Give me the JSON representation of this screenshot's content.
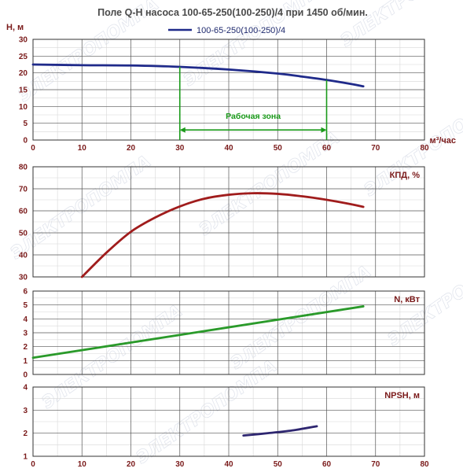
{
  "chart_data": {
    "title": "Поле Q-H насоса 100-65-250(100-250)/4 при 1450 об/мин.",
    "legend": "100-65-250(100-250)/4",
    "watermark": "ЭЛЕКТРОПОМПА",
    "xlabel": "м³/час",
    "xlim": [
      0,
      80
    ],
    "x_ticks": [
      "0",
      "10",
      "20",
      "30",
      "40",
      "50",
      "60",
      "70",
      "80"
    ],
    "colors": {
      "H": "#1f2a8a",
      "efficiency": "#a01c1c",
      "N": "#2a9a2a",
      "NPSH": "#2e2670",
      "axis_text": "#7a1a1a",
      "zone": "#1a9a1a"
    },
    "panels": [
      {
        "id": "H",
        "ylabel": "H, м",
        "type": "line",
        "ylim": [
          0,
          30
        ],
        "y_ticks": [
          "0",
          "5",
          "10",
          "15",
          "20",
          "25",
          "30"
        ],
        "series": [
          {
            "name": "100-65-250(100-250)/4",
            "x": [
              0,
              10,
              20,
              30,
              40,
              50,
              55,
              60,
              65,
              67.5
            ],
            "y": [
              22.5,
              22.3,
              22.2,
              21.8,
              21.0,
              19.8,
              18.9,
              17.9,
              16.7,
              16.0
            ]
          }
        ],
        "working_zone": {
          "label": "Рабочая зона",
          "x_start": 30,
          "x_end": 60,
          "arrow_y": 3
        }
      },
      {
        "id": "efficiency",
        "ylabel": "КПД, %",
        "type": "line",
        "ylim": [
          30,
          80
        ],
        "y_ticks": [
          "30",
          "40",
          "50",
          "60",
          "70",
          "80"
        ],
        "series": [
          {
            "x": [
              10,
              15,
              20,
              25,
              30,
              35,
              40,
              45,
              50,
              55,
              60,
              65,
              67.5
            ],
            "y": [
              30,
              41,
              50.5,
              57,
              62,
              65.5,
              67.3,
              68,
              67.7,
              66.6,
              65,
              63,
              61.8
            ]
          }
        ]
      },
      {
        "id": "N",
        "ylabel": "N, кВт",
        "type": "line",
        "ylim": [
          0,
          6
        ],
        "y_ticks": [
          "0",
          "1",
          "2",
          "3",
          "4",
          "5",
          "6"
        ],
        "series": [
          {
            "x": [
              0,
              67.5
            ],
            "y": [
              1.2,
              4.9
            ]
          }
        ]
      },
      {
        "id": "NPSH",
        "ylabel": "NPSH, м",
        "type": "line",
        "ylim": [
          1,
          4
        ],
        "y_ticks": [
          "1",
          "2",
          "3",
          "4"
        ],
        "series": [
          {
            "x": [
              43,
              48,
              53,
              58
            ],
            "y": [
              1.9,
              2.0,
              2.12,
              2.3
            ]
          }
        ]
      }
    ]
  }
}
